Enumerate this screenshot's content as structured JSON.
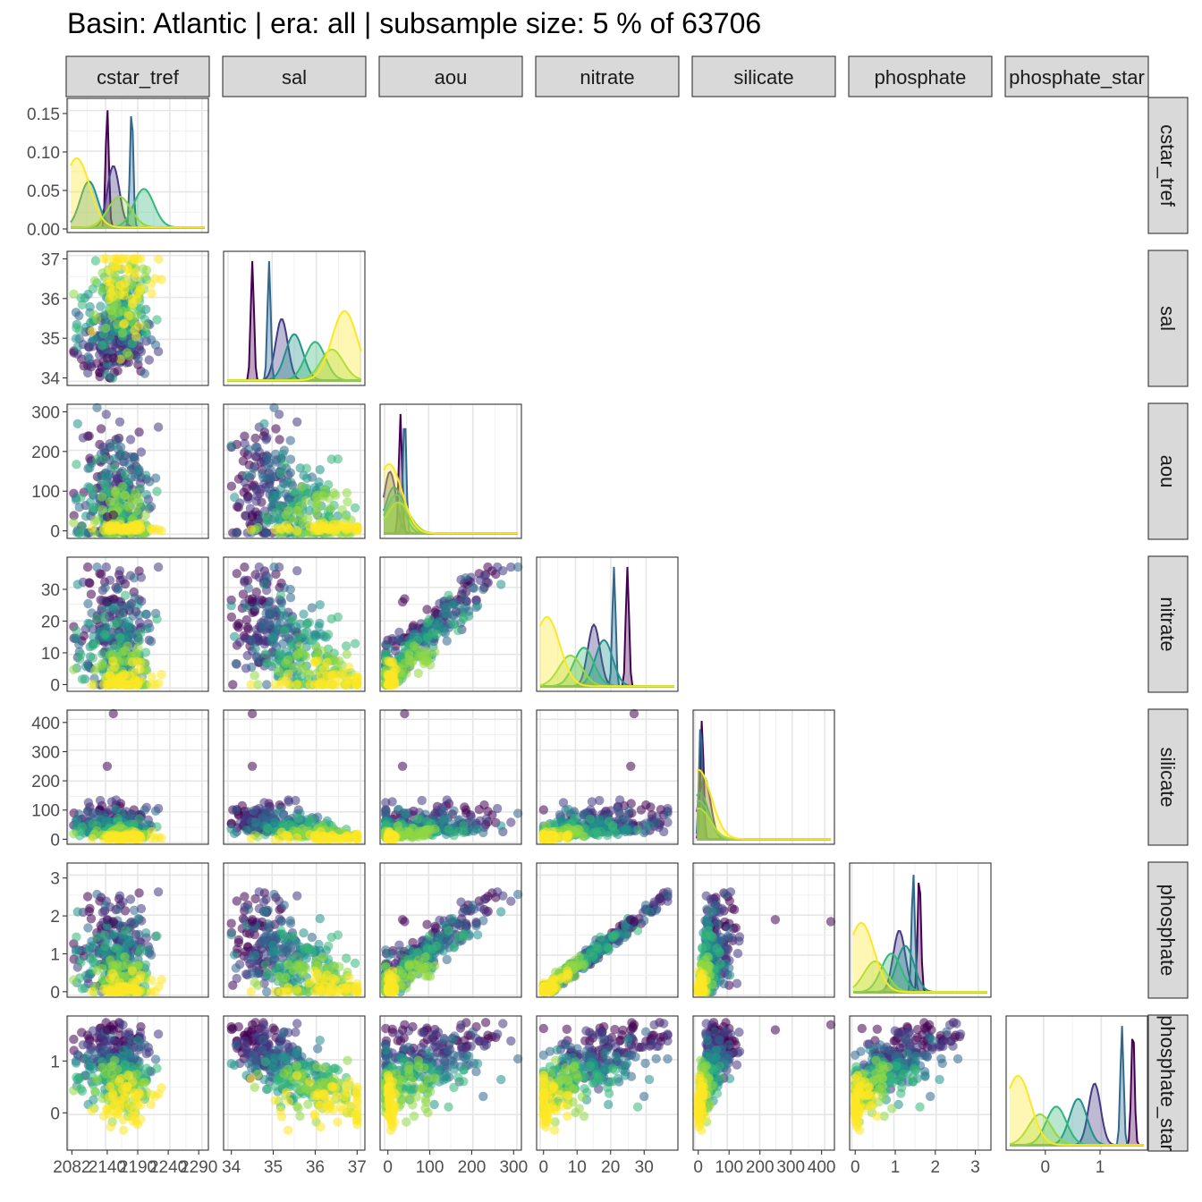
{
  "chart_data": {
    "type": "scatter-matrix",
    "title": "Basin: Atlantic | era: all | subsample size: 5 % of 63706",
    "variables": [
      "cstar_tref",
      "sal",
      "aou",
      "nitrate",
      "silicate",
      "phosphate",
      "phosphate_star"
    ],
    "ranges": {
      "cstar_tref": [
        2080,
        2300
      ],
      "sal": [
        33.9,
        37.1
      ],
      "aou": [
        -10,
        310
      ],
      "nitrate": [
        -1,
        39
      ],
      "silicate": [
        -5,
        430
      ],
      "phosphate": [
        -0.05,
        3.3
      ],
      "phosphate_star": [
        -0.65,
        1.8
      ]
    },
    "x_ticks": {
      "cstar_tref": [
        {
          "v": 2082,
          "label": "2082"
        },
        {
          "v": 2140,
          "label": "2140"
        },
        {
          "v": 2190,
          "label": "2190"
        },
        {
          "v": 2240,
          "label": "2240"
        },
        {
          "v": 2290,
          "label": "2290"
        }
      ],
      "sal": [
        {
          "v": 34,
          "label": "34"
        },
        {
          "v": 35,
          "label": "35"
        },
        {
          "v": 36,
          "label": "36"
        },
        {
          "v": 37,
          "label": "37"
        }
      ],
      "aou": [
        {
          "v": 0,
          "label": "0"
        },
        {
          "v": 100,
          "label": "100"
        },
        {
          "v": 200,
          "label": "200"
        },
        {
          "v": 300,
          "label": "300"
        }
      ],
      "nitrate": [
        {
          "v": 0,
          "label": "0"
        },
        {
          "v": 10,
          "label": "10"
        },
        {
          "v": 20,
          "label": "20"
        },
        {
          "v": 30,
          "label": "30"
        }
      ],
      "silicate": [
        {
          "v": 0,
          "label": "0"
        },
        {
          "v": 100,
          "label": "100"
        },
        {
          "v": 200,
          "label": "200"
        },
        {
          "v": 300,
          "label": "300"
        },
        {
          "v": 400,
          "label": "400"
        }
      ],
      "phosphate": [
        {
          "v": 0,
          "label": "0"
        },
        {
          "v": 1,
          "label": "1"
        },
        {
          "v": 2,
          "label": "2"
        },
        {
          "v": 3,
          "label": "3"
        }
      ],
      "phosphate_star": [
        {
          "v": 0,
          "label": "0"
        },
        {
          "v": 1,
          "label": "1"
        }
      ]
    },
    "y_ticks": {
      "density": [
        {
          "v": 0,
          "label": "0.00"
        },
        {
          "v": 0.05,
          "label": "0.05"
        },
        {
          "v": 0.1,
          "label": "0.10"
        },
        {
          "v": 0.15,
          "label": "0.15"
        }
      ],
      "sal": [
        {
          "v": 34,
          "label": "34"
        },
        {
          "v": 35,
          "label": "35"
        },
        {
          "v": 36,
          "label": "36"
        },
        {
          "v": 37,
          "label": "37"
        }
      ],
      "aou": [
        {
          "v": 0,
          "label": "0"
        },
        {
          "v": 100,
          "label": "100"
        },
        {
          "v": 200,
          "label": "200"
        },
        {
          "v": 300,
          "label": "300"
        }
      ],
      "nitrate": [
        {
          "v": 0,
          "label": "0"
        },
        {
          "v": 10,
          "label": "10"
        },
        {
          "v": 20,
          "label": "20"
        },
        {
          "v": 30,
          "label": "30"
        }
      ],
      "silicate": [
        {
          "v": 0,
          "label": "0"
        },
        {
          "v": 100,
          "label": "100"
        },
        {
          "v": 200,
          "label": "200"
        },
        {
          "v": 300,
          "label": "300"
        },
        {
          "v": 400,
          "label": "400"
        }
      ],
      "phosphate": [
        {
          "v": 0,
          "label": "0"
        },
        {
          "v": 1,
          "label": "1"
        },
        {
          "v": 2,
          "label": "2"
        },
        {
          "v": 3,
          "label": "3"
        }
      ],
      "phosphate_star": [
        {
          "v": 0,
          "label": "0"
        },
        {
          "v": 1,
          "label": "1"
        }
      ]
    },
    "density_peaks": {
      "cstar_tref": [
        2140,
        2150,
        2180,
        2110,
        2200,
        2160,
        2090
      ],
      "sal": [
        34.5,
        35.2,
        34.9,
        35.5,
        36.0,
        36.4,
        36.7
      ],
      "aou": [
        30,
        5,
        40,
        15,
        20,
        25,
        3
      ],
      "nitrate": [
        25,
        15,
        21,
        18,
        12,
        8,
        1
      ],
      "silicate": [
        12,
        20,
        8,
        5,
        3,
        2,
        1
      ],
      "phosphate": [
        1.6,
        1.1,
        1.45,
        1.25,
        0.9,
        0.5,
        0.15
      ],
      "phosphate_star": [
        1.6,
        0.9,
        1.4,
        0.6,
        0.2,
        -0.1,
        -0.5
      ]
    },
    "grid": true,
    "color_scale": "viridis",
    "series_colors": [
      "#440154",
      "#443983",
      "#31688e",
      "#21918c",
      "#35b779",
      "#90d743",
      "#fde725"
    ],
    "marker_alpha": 0.55
  }
}
